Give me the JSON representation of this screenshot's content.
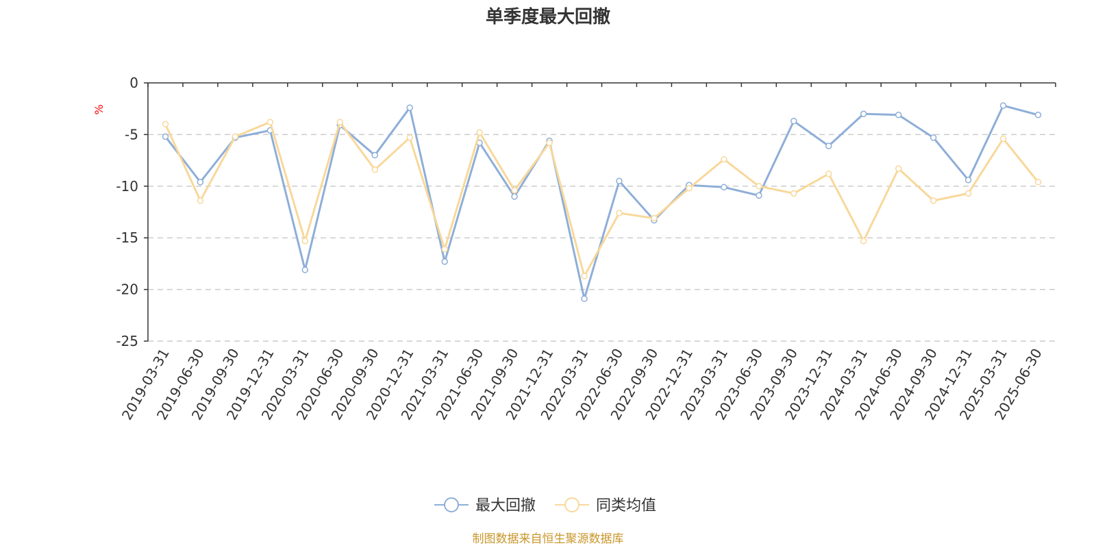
{
  "chart_data": {
    "type": "line",
    "title": "单季度最大回撤",
    "unit_label": "%",
    "source": "制图数据来自恒生聚源数据库",
    "x": [
      "2019-03-31",
      "2019-06-30",
      "2019-09-30",
      "2019-12-31",
      "2020-03-31",
      "2020-06-30",
      "2020-09-30",
      "2020-12-31",
      "2021-03-31",
      "2021-06-30",
      "2021-09-30",
      "2021-12-31",
      "2022-03-31",
      "2022-06-30",
      "2022-09-30",
      "2022-12-31",
      "2023-03-31",
      "2023-06-30",
      "2023-09-30",
      "2023-12-31",
      "2024-03-31",
      "2024-06-30",
      "2024-09-30",
      "2024-12-31",
      "2025-03-31",
      "2025-06-30"
    ],
    "y_ticks": [
      "0",
      "-5",
      "-10",
      "-15",
      "-20",
      "-25"
    ],
    "ylim": [
      -25,
      0
    ],
    "grid": true,
    "legend_position": "bottom-center",
    "series": [
      {
        "name": "最大回撤",
        "color": "#8eaed8",
        "values": [
          -5.2,
          -9.6,
          -5.3,
          -4.6,
          -18.1,
          -4.1,
          -7.0,
          -2.4,
          -17.3,
          -5.8,
          -11.0,
          -5.6,
          -20.9,
          -9.5,
          -13.3,
          -9.9,
          -10.1,
          -10.9,
          -3.7,
          -6.1,
          -3.0,
          -3.1,
          -5.3,
          -9.4,
          -2.2,
          -3.1
        ]
      },
      {
        "name": "同类均值",
        "color": "#f8d89a",
        "values": [
          -4.0,
          -11.4,
          -5.2,
          -3.8,
          -15.3,
          -3.8,
          -8.4,
          -5.3,
          -16.1,
          -4.8,
          -10.4,
          -5.8,
          -18.7,
          -12.6,
          -13.1,
          -10.2,
          -7.4,
          -10.0,
          -10.7,
          -8.8,
          -15.3,
          -8.3,
          -11.4,
          -10.7,
          -5.4,
          -9.6
        ]
      }
    ]
  }
}
